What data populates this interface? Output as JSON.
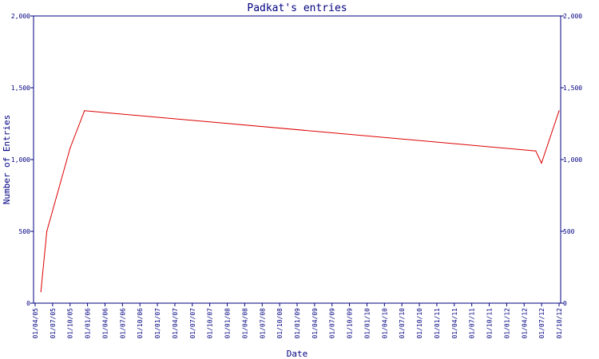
{
  "chart_data": {
    "type": "line",
    "title": "Padkat's entries",
    "xlabel": "Date",
    "ylabel": "Number of Entries",
    "ylim": [
      0,
      2000
    ],
    "yticks": [
      0,
      500,
      1000,
      1500,
      2000
    ],
    "ytick_labels": [
      "0",
      "500",
      "1,000",
      "1,500",
      "2,000"
    ],
    "xlim": [
      "2005-04-01",
      "2012-10-01"
    ],
    "xtick_labels": [
      "01/04/05",
      "01/07/05",
      "01/10/05",
      "01/01/06",
      "01/04/06",
      "01/07/06",
      "01/10/06",
      "01/01/07",
      "01/04/07",
      "01/07/07",
      "01/10/07",
      "01/01/08",
      "01/04/08",
      "01/07/08",
      "01/10/08",
      "01/01/09",
      "01/04/09",
      "01/07/09",
      "01/10/09",
      "01/01/10",
      "01/04/10",
      "01/07/10",
      "01/10/10",
      "01/01/11",
      "01/04/11",
      "01/07/11",
      "01/10/11",
      "01/01/12",
      "01/04/12",
      "01/07/12",
      "01/10/12"
    ],
    "grid": false,
    "axes_both_sides": true,
    "series": [
      {
        "color": "#dd0000",
        "points": [
          {
            "x": "2005-05-01",
            "y": 80
          },
          {
            "x": "2005-06-01",
            "y": 500
          },
          {
            "x": "2005-10-01",
            "y": 1080
          },
          {
            "x": "2005-12-15",
            "y": 1340
          },
          {
            "x": "2012-06-01",
            "y": 1060
          },
          {
            "x": "2012-07-01",
            "y": 975
          },
          {
            "x": "2012-10-01",
            "y": 1340
          }
        ]
      }
    ]
  }
}
